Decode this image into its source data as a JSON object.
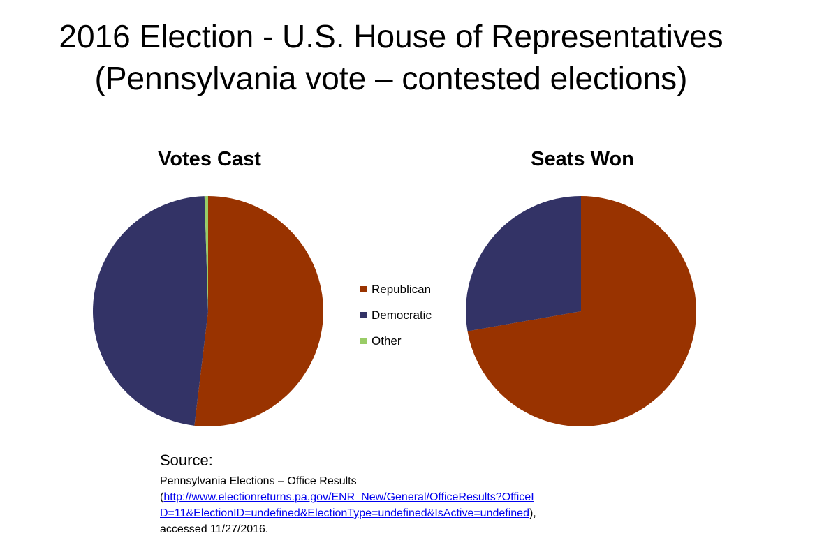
{
  "title_line1": "2016 Election - U.S. House of Representatives",
  "title_line2": "(Pennsylvania vote – contested elections)",
  "chart_data": [
    {
      "type": "pie",
      "title": "Votes Cast",
      "categories": [
        "Republican",
        "Democratic",
        "Other"
      ],
      "values": [
        51.9,
        47.6,
        0.5
      ],
      "colors": [
        "#993300",
        "#333366",
        "#99CC66"
      ]
    },
    {
      "type": "pie",
      "title": "Seats Won",
      "categories": [
        "Republican",
        "Democratic",
        "Other"
      ],
      "values": [
        13,
        5,
        0
      ],
      "colors": [
        "#993300",
        "#333366",
        "#99CC66"
      ]
    }
  ],
  "legend": {
    "placement": "center",
    "items": [
      {
        "label": "Republican",
        "color": "#993300"
      },
      {
        "label": "Democratic",
        "color": "#333366"
      },
      {
        "label": "Other",
        "color": "#99CC66"
      }
    ]
  },
  "source": {
    "heading": "Source:",
    "line1": "Pennsylvania Elections – Office Results",
    "open_paren": "(",
    "link_part1": "http://www.electionreturns.pa.gov/ENR_New/General/OfficeResults?OfficeI",
    "link_part2": "D=11&ElectionID=undefined&ElectionType=undefined&IsActive=undefined",
    "close_paren": "),",
    "line_last": "accessed 11/27/2016."
  }
}
